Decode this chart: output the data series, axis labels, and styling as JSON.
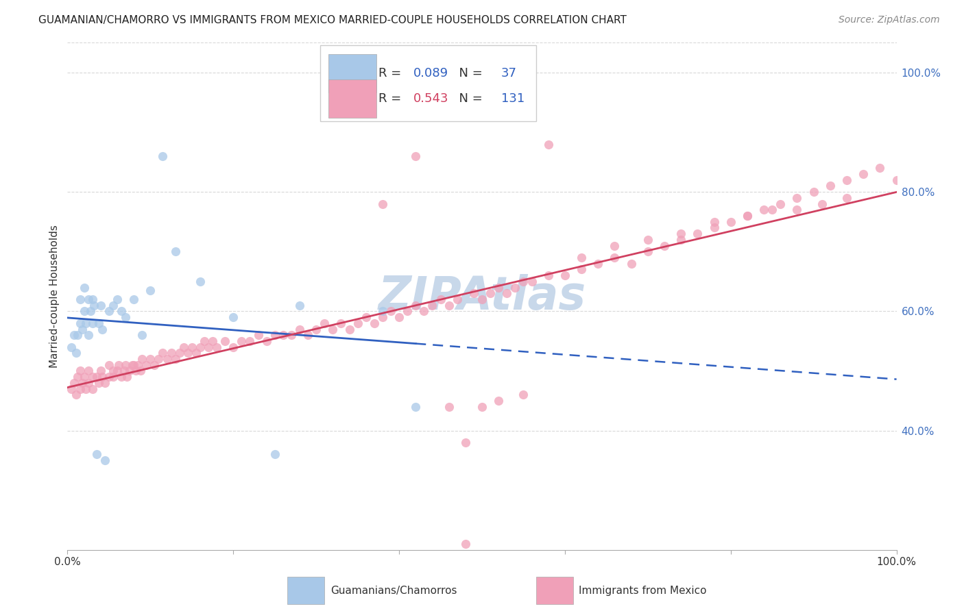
{
  "title": "GUAMANIAN/CHAMORRO VS IMMIGRANTS FROM MEXICO MARRIED-COUPLE HOUSEHOLDS CORRELATION CHART",
  "source": "Source: ZipAtlas.com",
  "ylabel": "Married-couple Households",
  "legend_blue_r": "0.089",
  "legend_blue_n": "37",
  "legend_pink_r": "0.543",
  "legend_pink_n": "131",
  "blue_color": "#a8c8e8",
  "pink_color": "#f0a0b8",
  "blue_line_color": "#3060c0",
  "pink_line_color": "#d04060",
  "right_tick_color": "#4070c0",
  "background_color": "#ffffff",
  "grid_color": "#d8d8d8",
  "watermark_color": "#c8d8ea",
  "xlim": [
    0,
    1
  ],
  "ylim": [
    0.2,
    1.05
  ],
  "yticks": [
    0.4,
    0.6,
    0.8,
    1.0
  ],
  "ytick_labels": [
    "40.0%",
    "60.0%",
    "80.0%",
    "100.0%"
  ],
  "blue_x": [
    0.005,
    0.008,
    0.01,
    0.012,
    0.015,
    0.015,
    0.018,
    0.02,
    0.02,
    0.022,
    0.025,
    0.025,
    0.028,
    0.03,
    0.03,
    0.032,
    0.035,
    0.038,
    0.04,
    0.042,
    0.045,
    0.05,
    0.055,
    0.06,
    0.065,
    0.07,
    0.08,
    0.09,
    0.1,
    0.115,
    0.13,
    0.16,
    0.2,
    0.25,
    0.28,
    0.38,
    0.42
  ],
  "blue_y": [
    0.54,
    0.56,
    0.53,
    0.56,
    0.58,
    0.62,
    0.57,
    0.6,
    0.64,
    0.58,
    0.56,
    0.62,
    0.6,
    0.62,
    0.58,
    0.61,
    0.36,
    0.58,
    0.61,
    0.57,
    0.35,
    0.6,
    0.61,
    0.62,
    0.6,
    0.59,
    0.62,
    0.56,
    0.635,
    0.86,
    0.7,
    0.65,
    0.59,
    0.36,
    0.61,
    0.6,
    0.44
  ],
  "pink_x": [
    0.005,
    0.008,
    0.01,
    0.012,
    0.015,
    0.015,
    0.018,
    0.02,
    0.022,
    0.025,
    0.025,
    0.03,
    0.03,
    0.035,
    0.038,
    0.04,
    0.042,
    0.045,
    0.05,
    0.05,
    0.055,
    0.055,
    0.06,
    0.062,
    0.065,
    0.068,
    0.07,
    0.072,
    0.075,
    0.078,
    0.08,
    0.082,
    0.085,
    0.088,
    0.09,
    0.095,
    0.1,
    0.105,
    0.11,
    0.115,
    0.12,
    0.125,
    0.13,
    0.135,
    0.14,
    0.145,
    0.15,
    0.155,
    0.16,
    0.165,
    0.17,
    0.175,
    0.18,
    0.19,
    0.2,
    0.21,
    0.22,
    0.23,
    0.24,
    0.25,
    0.26,
    0.27,
    0.28,
    0.29,
    0.3,
    0.31,
    0.32,
    0.33,
    0.34,
    0.35,
    0.36,
    0.37,
    0.38,
    0.39,
    0.4,
    0.41,
    0.42,
    0.43,
    0.44,
    0.45,
    0.46,
    0.47,
    0.48,
    0.49,
    0.5,
    0.51,
    0.52,
    0.53,
    0.54,
    0.55,
    0.56,
    0.58,
    0.6,
    0.62,
    0.64,
    0.66,
    0.68,
    0.7,
    0.72,
    0.74,
    0.76,
    0.78,
    0.8,
    0.82,
    0.84,
    0.86,
    0.88,
    0.9,
    0.92,
    0.94,
    0.96,
    0.98,
    1.0,
    0.48,
    0.42,
    0.38,
    0.46,
    0.5,
    0.52,
    0.55,
    0.58,
    0.62,
    0.66,
    0.7,
    0.74,
    0.78,
    0.82,
    0.85,
    0.88,
    0.91,
    0.94
  ],
  "pink_y": [
    0.47,
    0.48,
    0.46,
    0.49,
    0.47,
    0.5,
    0.48,
    0.49,
    0.47,
    0.48,
    0.5,
    0.49,
    0.47,
    0.49,
    0.48,
    0.5,
    0.49,
    0.48,
    0.49,
    0.51,
    0.5,
    0.49,
    0.5,
    0.51,
    0.49,
    0.5,
    0.51,
    0.49,
    0.5,
    0.51,
    0.51,
    0.5,
    0.51,
    0.5,
    0.52,
    0.51,
    0.52,
    0.51,
    0.52,
    0.53,
    0.52,
    0.53,
    0.52,
    0.53,
    0.54,
    0.53,
    0.54,
    0.53,
    0.54,
    0.55,
    0.54,
    0.55,
    0.54,
    0.55,
    0.54,
    0.55,
    0.55,
    0.56,
    0.55,
    0.56,
    0.56,
    0.56,
    0.57,
    0.56,
    0.57,
    0.58,
    0.57,
    0.58,
    0.57,
    0.58,
    0.59,
    0.58,
    0.59,
    0.6,
    0.59,
    0.6,
    0.61,
    0.6,
    0.61,
    0.62,
    0.61,
    0.62,
    0.38,
    0.63,
    0.62,
    0.63,
    0.64,
    0.63,
    0.64,
    0.65,
    0.65,
    0.66,
    0.66,
    0.67,
    0.68,
    0.69,
    0.68,
    0.7,
    0.71,
    0.72,
    0.73,
    0.74,
    0.75,
    0.76,
    0.77,
    0.78,
    0.79,
    0.8,
    0.81,
    0.82,
    0.83,
    0.84,
    0.82,
    0.21,
    0.86,
    0.78,
    0.44,
    0.44,
    0.45,
    0.46,
    0.88,
    0.69,
    0.71,
    0.72,
    0.73,
    0.75,
    0.76,
    0.77,
    0.77,
    0.78,
    0.79
  ]
}
